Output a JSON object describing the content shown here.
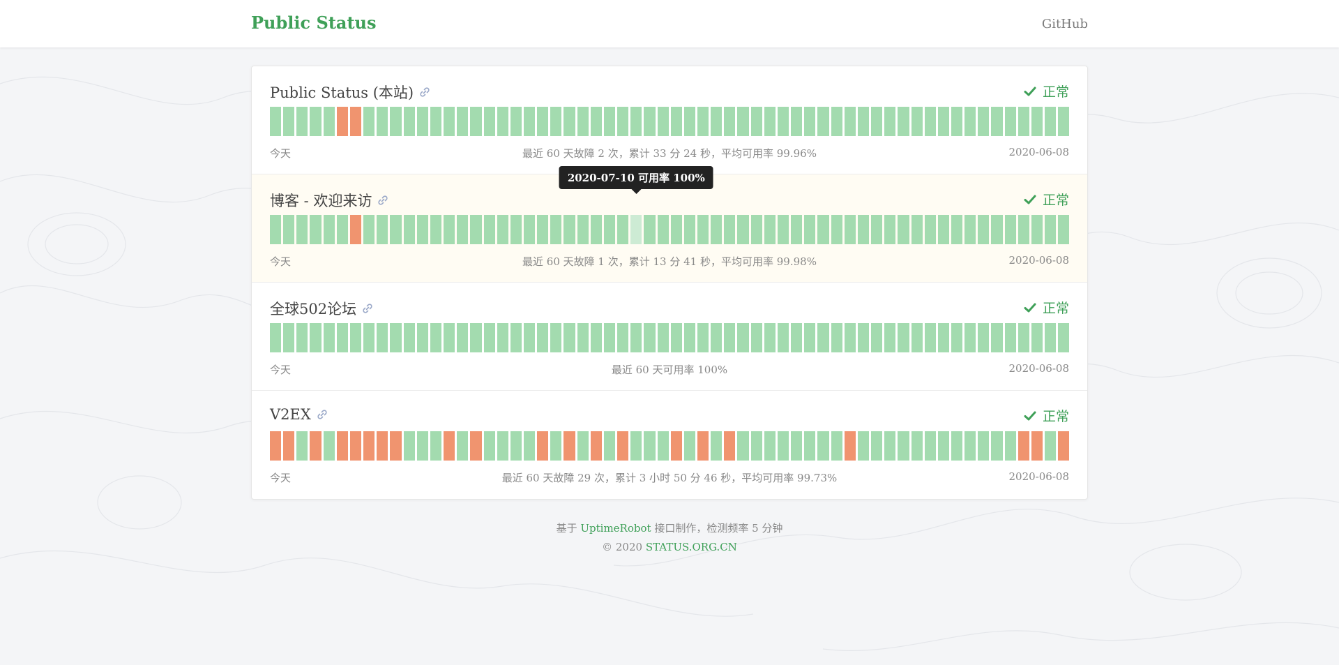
{
  "header": {
    "title": "Public Status",
    "github_label": "GitHub"
  },
  "colors": {
    "up": "#a3dbaf",
    "down": "#f0946f",
    "accent": "#3fa058"
  },
  "tooltip": {
    "text": "2020-07-10 可用率 100%",
    "site_index": 1,
    "day_index": 27
  },
  "sites": [
    {
      "name": "Public Status (本站)",
      "status": "正常",
      "down_days": [
        5,
        6
      ],
      "summary": "最近 60 天故障 2 次，累计 33 分 24 秒，平均可用率 99.96%",
      "today_label": "今天",
      "start_date": "2020-06-08"
    },
    {
      "name": "博客 - 欢迎来访",
      "status": "正常",
      "down_days": [
        6
      ],
      "summary": "最近 60 天故障 1 次，累计 13 分 41 秒，平均可用率 99.98%",
      "today_label": "今天",
      "start_date": "2020-06-08"
    },
    {
      "name": "全球502论坛",
      "status": "正常",
      "down_days": [],
      "summary": "最近 60 天可用率 100%",
      "today_label": "今天",
      "start_date": "2020-06-08"
    },
    {
      "name": "V2EX",
      "status": "正常",
      "down_days": [
        0,
        1,
        3,
        5,
        6,
        7,
        8,
        9,
        13,
        15,
        20,
        22,
        24,
        26,
        30,
        32,
        34,
        43,
        56,
        57,
        59
      ],
      "summary": "最近 60 天故障 29 次，累计 3 小时 50 分 46 秒，平均可用率 99.73%",
      "today_label": "今天",
      "start_date": "2020-06-08"
    }
  ],
  "days_shown": 60,
  "footer": {
    "line1_prefix": "基于",
    "line1_link": "UptimeRobot",
    "line1_suffix": "接口制作，检测频率 5 分钟",
    "line2_prefix": "© 2020",
    "line2_link": "STATUS.ORG.CN"
  }
}
